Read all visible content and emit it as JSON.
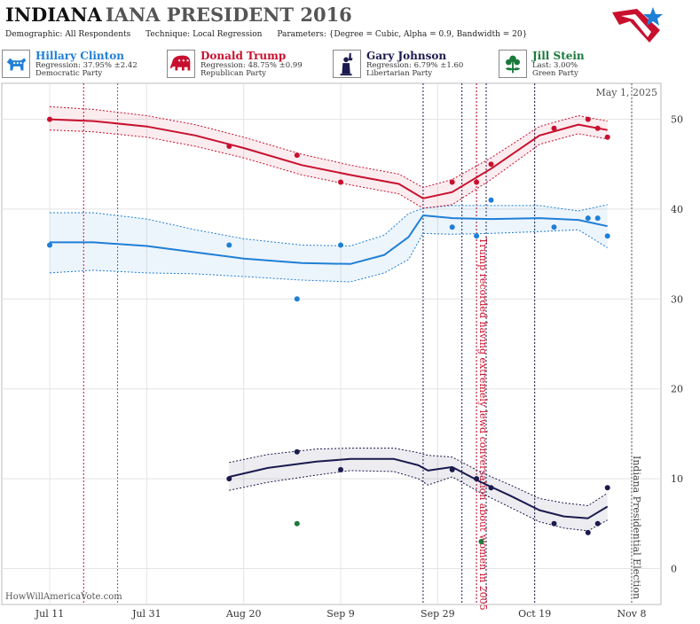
{
  "header": {
    "title_state": "INDIANA",
    "title_rest": "IANA PRESIDENT 2016",
    "demographic_label": "Demographic:",
    "demographic_value": "All Respondents",
    "technique_label": "Technique:",
    "technique_value": "Local Regression",
    "parameters_label": "Parameters:",
    "parameters_value": "{Degree = Cubic, Alpha = 0.9, Bandwidth = 20}"
  },
  "candidates": [
    {
      "name": "Hillary Clinton",
      "stat": "Regression: 37.95% ±2.42",
      "party": "Democratic Party",
      "color": "#1f7fd6",
      "icon": "donkey-icon"
    },
    {
      "name": "Donald Trump",
      "stat": "Regression: 48.75% ±0.99",
      "party": "Republican Party",
      "color": "#c8102e",
      "icon": "elephant-icon"
    },
    {
      "name": "Gary Johnson",
      "stat": "Regression: 6.79% ±1.60",
      "party": "Libertarian Party",
      "color": "#1a1a4e",
      "icon": "liberty-icon"
    },
    {
      "name": "Jill Stein",
      "stat": "Last: 3.00%",
      "party": "Green Party",
      "color": "#1a7a3c",
      "icon": "flower-icon"
    }
  ],
  "watermark": "HowWillAmericaVote.com",
  "chart_data": {
    "type": "scatter",
    "date_label": "May 1, 2025",
    "x_ticks": [
      "Jul 11",
      "Jul 31",
      "Aug 20",
      "Sep 9",
      "Sep 29",
      "Oct 19",
      "Nov 8"
    ],
    "x_tick_dates": [
      "2016-07-11",
      "2016-07-31",
      "2016-08-20",
      "2016-09-09",
      "2016-09-29",
      "2016-10-19",
      "2016-11-08"
    ],
    "ylim": [
      -4,
      54
    ],
    "y_ticks": [
      0,
      10,
      20,
      30,
      40,
      50
    ],
    "grid": true,
    "series": [
      {
        "name": "Hillary Clinton",
        "color": "#1f7fd6",
        "points": [
          [
            "2016-07-11",
            36
          ],
          [
            "2016-08-17",
            36
          ],
          [
            "2016-08-31",
            30
          ],
          [
            "2016-09-09",
            36
          ],
          [
            "2016-10-02",
            38
          ],
          [
            "2016-10-07",
            37
          ],
          [
            "2016-10-10",
            41
          ],
          [
            "2016-10-23",
            38
          ],
          [
            "2016-10-30",
            39
          ],
          [
            "2016-11-01",
            39
          ],
          [
            "2016-11-03",
            37
          ]
        ],
        "trend": [
          [
            "2016-07-11",
            36.3
          ],
          [
            "2016-07-20",
            36.3
          ],
          [
            "2016-07-31",
            35.9
          ],
          [
            "2016-08-10",
            35.2
          ],
          [
            "2016-08-20",
            34.5
          ],
          [
            "2016-09-01",
            34.0
          ],
          [
            "2016-09-11",
            33.9
          ],
          [
            "2016-09-18",
            34.9
          ],
          [
            "2016-09-23",
            36.9
          ],
          [
            "2016-09-26",
            39.3
          ],
          [
            "2016-10-02",
            39.0
          ],
          [
            "2016-10-10",
            38.9
          ],
          [
            "2016-10-20",
            39.0
          ],
          [
            "2016-10-28",
            38.8
          ],
          [
            "2016-11-03",
            38.1
          ]
        ],
        "upper": [
          [
            "2016-07-11",
            39.6
          ],
          [
            "2016-07-20",
            39.6
          ],
          [
            "2016-07-31",
            38.9
          ],
          [
            "2016-08-10",
            37.7
          ],
          [
            "2016-08-20",
            36.7
          ],
          [
            "2016-09-01",
            36.0
          ],
          [
            "2016-09-11",
            35.9
          ],
          [
            "2016-09-18",
            37.1
          ],
          [
            "2016-09-23",
            39.5
          ],
          [
            "2016-09-26",
            40.1
          ],
          [
            "2016-10-02",
            40.4
          ],
          [
            "2016-10-10",
            40.4
          ],
          [
            "2016-10-20",
            40.4
          ],
          [
            "2016-10-28",
            39.8
          ],
          [
            "2016-11-03",
            40.5
          ]
        ],
        "lower": [
          [
            "2016-07-11",
            32.9
          ],
          [
            "2016-07-20",
            33.2
          ],
          [
            "2016-07-31",
            32.9
          ],
          [
            "2016-08-10",
            32.8
          ],
          [
            "2016-08-20",
            32.5
          ],
          [
            "2016-09-01",
            32.1
          ],
          [
            "2016-09-11",
            31.9
          ],
          [
            "2016-09-18",
            32.9
          ],
          [
            "2016-09-23",
            34.4
          ],
          [
            "2016-09-26",
            37.3
          ],
          [
            "2016-10-02",
            37.2
          ],
          [
            "2016-10-10",
            37.3
          ],
          [
            "2016-10-20",
            37.5
          ],
          [
            "2016-10-28",
            37.7
          ],
          [
            "2016-11-03",
            35.7
          ]
        ]
      },
      {
        "name": "Donald Trump",
        "color": "#c8102e",
        "points": [
          [
            "2016-07-11",
            50
          ],
          [
            "2016-08-17",
            47
          ],
          [
            "2016-08-31",
            46
          ],
          [
            "2016-09-09",
            43
          ],
          [
            "2016-10-02",
            43
          ],
          [
            "2016-10-07",
            43
          ],
          [
            "2016-10-10",
            45
          ],
          [
            "2016-10-23",
            49
          ],
          [
            "2016-10-30",
            50
          ],
          [
            "2016-11-01",
            49
          ],
          [
            "2016-11-03",
            48
          ]
        ],
        "trend": [
          [
            "2016-07-11",
            50.0
          ],
          [
            "2016-07-20",
            49.8
          ],
          [
            "2016-07-31",
            49.2
          ],
          [
            "2016-08-10",
            48.2
          ],
          [
            "2016-08-20",
            46.8
          ],
          [
            "2016-09-01",
            44.9
          ],
          [
            "2016-09-11",
            43.8
          ],
          [
            "2016-09-21",
            42.8
          ],
          [
            "2016-09-26",
            41.2
          ],
          [
            "2016-10-02",
            41.9
          ],
          [
            "2016-10-10",
            44.5
          ],
          [
            "2016-10-20",
            48.2
          ],
          [
            "2016-10-28",
            49.4
          ],
          [
            "2016-11-03",
            48.8
          ]
        ],
        "upper": [
          [
            "2016-07-11",
            51.4
          ],
          [
            "2016-07-20",
            51.1
          ],
          [
            "2016-07-31",
            50.4
          ],
          [
            "2016-08-10",
            49.4
          ],
          [
            "2016-08-20",
            48.0
          ],
          [
            "2016-09-01",
            46.1
          ],
          [
            "2016-09-11",
            44.9
          ],
          [
            "2016-09-21",
            43.9
          ],
          [
            "2016-09-26",
            42.4
          ],
          [
            "2016-10-02",
            43.3
          ],
          [
            "2016-10-10",
            45.7
          ],
          [
            "2016-10-20",
            49.2
          ],
          [
            "2016-10-28",
            50.4
          ],
          [
            "2016-11-03",
            49.8
          ]
        ],
        "lower": [
          [
            "2016-07-11",
            48.8
          ],
          [
            "2016-07-20",
            48.6
          ],
          [
            "2016-07-31",
            48.0
          ],
          [
            "2016-08-10",
            47.0
          ],
          [
            "2016-08-20",
            45.7
          ],
          [
            "2016-09-01",
            43.8
          ],
          [
            "2016-09-11",
            42.7
          ],
          [
            "2016-09-21",
            41.7
          ],
          [
            "2016-09-26",
            40.1
          ],
          [
            "2016-10-02",
            40.5
          ],
          [
            "2016-10-10",
            43.3
          ],
          [
            "2016-10-20",
            47.2
          ],
          [
            "2016-10-28",
            48.4
          ],
          [
            "2016-11-03",
            47.8
          ]
        ]
      },
      {
        "name": "Gary Johnson",
        "color": "#1a1a4e",
        "points": [
          [
            "2016-08-17",
            10
          ],
          [
            "2016-08-31",
            13
          ],
          [
            "2016-09-09",
            11
          ],
          [
            "2016-10-02",
            11
          ],
          [
            "2016-10-07",
            10
          ],
          [
            "2016-10-10",
            9
          ],
          [
            "2016-10-23",
            5
          ],
          [
            "2016-10-30",
            4
          ],
          [
            "2016-11-01",
            5
          ],
          [
            "2016-11-03",
            9
          ]
        ],
        "trend": [
          [
            "2016-08-17",
            10.2
          ],
          [
            "2016-08-25",
            11.2
          ],
          [
            "2016-09-04",
            11.9
          ],
          [
            "2016-09-11",
            12.2
          ],
          [
            "2016-09-20",
            12.2
          ],
          [
            "2016-09-25",
            11.5
          ],
          [
            "2016-09-27",
            10.9
          ],
          [
            "2016-10-02",
            11.3
          ],
          [
            "2016-10-08",
            9.6
          ],
          [
            "2016-10-14",
            8.1
          ],
          [
            "2016-10-20",
            6.5
          ],
          [
            "2016-10-25",
            5.8
          ],
          [
            "2016-10-30",
            5.6
          ],
          [
            "2016-11-03",
            6.9
          ]
        ],
        "upper": [
          [
            "2016-08-17",
            11.8
          ],
          [
            "2016-08-25",
            12.7
          ],
          [
            "2016-09-04",
            13.3
          ],
          [
            "2016-09-11",
            13.4
          ],
          [
            "2016-09-20",
            13.4
          ],
          [
            "2016-09-25",
            12.9
          ],
          [
            "2016-09-27",
            12.6
          ],
          [
            "2016-10-02",
            12.4
          ],
          [
            "2016-10-08",
            10.7
          ],
          [
            "2016-10-14",
            9.3
          ],
          [
            "2016-10-20",
            7.8
          ],
          [
            "2016-10-25",
            7.3
          ],
          [
            "2016-10-30",
            7.0
          ],
          [
            "2016-11-03",
            8.4
          ]
        ],
        "lower": [
          [
            "2016-08-17",
            8.7
          ],
          [
            "2016-08-25",
            9.6
          ],
          [
            "2016-09-04",
            10.4
          ],
          [
            "2016-09-11",
            10.9
          ],
          [
            "2016-09-20",
            10.8
          ],
          [
            "2016-09-25",
            10.0
          ],
          [
            "2016-09-27",
            9.3
          ],
          [
            "2016-10-02",
            10.2
          ],
          [
            "2016-10-08",
            8.4
          ],
          [
            "2016-10-14",
            6.8
          ],
          [
            "2016-10-20",
            5.2
          ],
          [
            "2016-10-25",
            4.5
          ],
          [
            "2016-10-30",
            4.2
          ],
          [
            "2016-11-03",
            5.4
          ]
        ]
      },
      {
        "name": "Jill Stein",
        "color": "#1a7a3c",
        "points": [
          [
            "2016-08-31",
            5
          ],
          [
            "2016-10-08",
            3
          ]
        ]
      }
    ],
    "vertical_lines": [
      {
        "date": "2016-07-18",
        "color": "#c8102e"
      },
      {
        "date": "2016-07-25",
        "color": "#1f7fd6"
      },
      {
        "date": "2016-09-26",
        "color": "#1a1a4e"
      },
      {
        "date": "2016-10-04",
        "color": "#1a1a4e"
      },
      {
        "date": "2016-10-07",
        "color": "#1a1a4e"
      },
      {
        "date": "2016-10-09",
        "color": "#1a1a4e"
      },
      {
        "date": "2016-10-19",
        "color": "#1a1a4e"
      },
      {
        "date": "2016-11-08",
        "color": "#555555"
      }
    ],
    "event_lines": [
      {
        "date": "2016-10-07",
        "color": "#c8102e",
        "label": "Trump recorded having extremely lewd conversation about women in 2005"
      }
    ],
    "election_label": "Indiana Presidential Election"
  }
}
